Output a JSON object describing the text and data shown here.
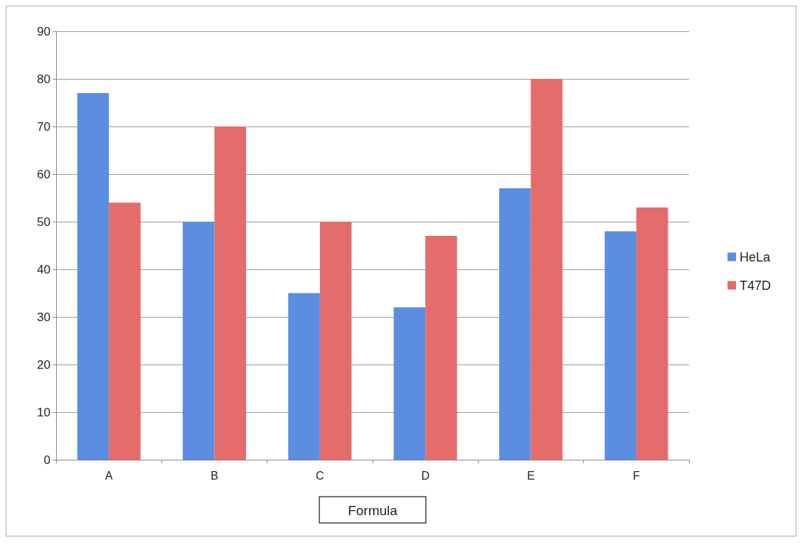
{
  "chart_data": {
    "type": "bar",
    "xlabel": "Formula",
    "categories": [
      "A",
      "B",
      "C",
      "D",
      "E",
      "F"
    ],
    "series": [
      {
        "name": "HeLa",
        "color": "#5b8de0",
        "values": [
          77,
          50,
          35,
          32,
          57,
          48
        ]
      },
      {
        "name": "T47D",
        "color": "#e46c6a",
        "values": [
          54,
          70,
          50,
          47,
          80,
          53
        ]
      }
    ],
    "ylim": [
      0,
      90
    ],
    "yticks": [
      0,
      10,
      20,
      30,
      40,
      50,
      60,
      70,
      80,
      90
    ],
    "grid": "y",
    "legend": "right"
  }
}
